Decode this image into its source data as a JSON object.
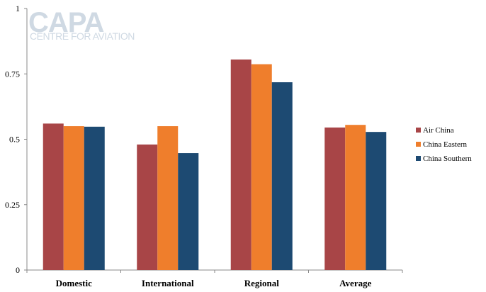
{
  "watermark": {
    "title": "CAPA",
    "subtitle": "CENTRE FOR AVIATION"
  },
  "chart_data": {
    "type": "bar",
    "title": "",
    "xlabel": "",
    "ylabel": "",
    "categories": [
      "Domestic",
      "International",
      "Regional",
      "Average"
    ],
    "series": [
      {
        "name": "Air China",
        "color": "#a84547",
        "values": [
          0.56,
          0.48,
          0.805,
          0.545
        ]
      },
      {
        "name": "China Eastern",
        "color": "#ef7e2c",
        "values": [
          0.55,
          0.55,
          0.787,
          0.555
        ]
      },
      {
        "name": "China Southern",
        "color": "#1d4a72",
        "values": [
          0.548,
          0.447,
          0.718,
          0.528
        ]
      }
    ],
    "ylim": [
      0,
      1
    ],
    "yticks": [
      0,
      0.25,
      0.5,
      0.75,
      1
    ],
    "ytick_labels": [
      "0",
      "0.25",
      "0.5",
      "0.75",
      "1"
    ],
    "grid": false,
    "legend": "right"
  }
}
